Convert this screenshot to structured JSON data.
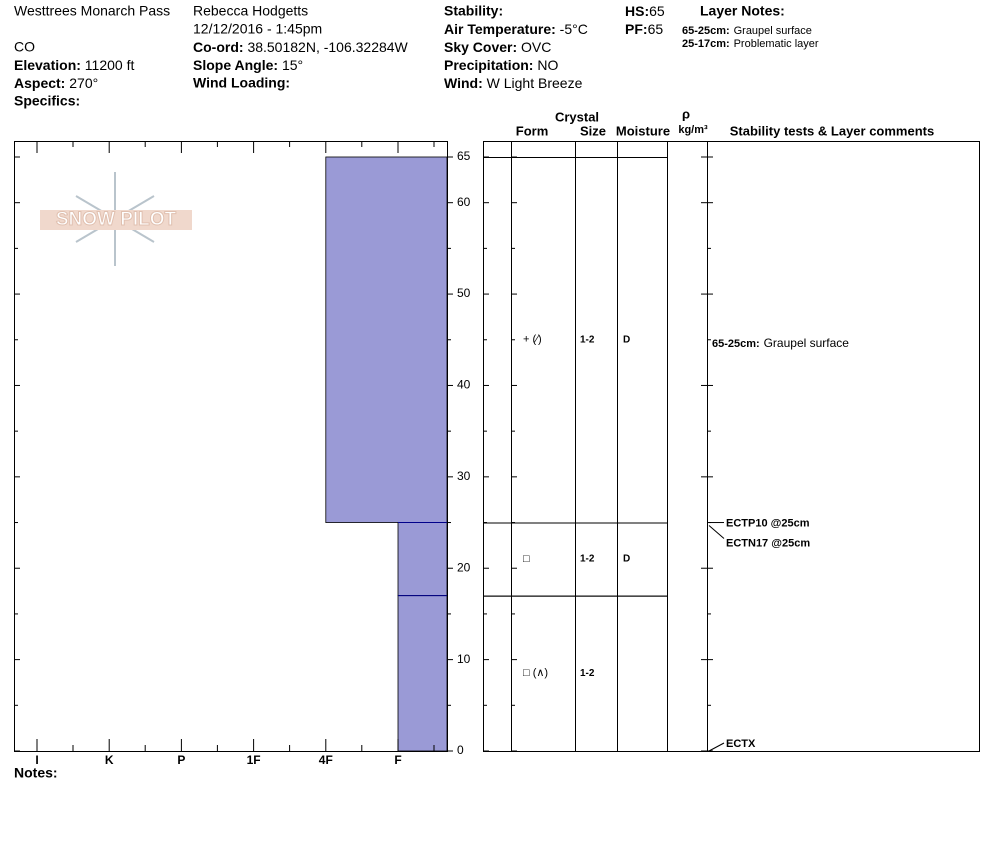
{
  "header": {
    "location": "Westtrees Monarch Pass",
    "state": "CO",
    "elevation_label": "Elevation:",
    "elevation": "11200 ft",
    "aspect_label": "Aspect:",
    "aspect": "270°",
    "specifics_label": "Specifics:",
    "observer": "Rebecca Hodgetts",
    "datetime": "12/12/2016 - 1:45pm",
    "coord_label": "Co-ord:",
    "coord": "38.50182N, -106.32284W",
    "slope_label": "Slope Angle:",
    "slope": "15°",
    "wind_loading_label": "Wind Loading:",
    "stability_label": "Stability:",
    "air_temp_label": "Air Temperature:",
    "air_temp": "-5°C",
    "sky_label": "Sky Cover:",
    "sky": "OVC",
    "precip_label": "Precipitation:",
    "precip": "NO",
    "wind_label": "Wind:",
    "wind": "W Light Breeze",
    "hs_label": "HS:",
    "hs": "65",
    "pf_label": "PF:",
    "pf": "65",
    "layer_notes_title": "Layer Notes:",
    "layer_notes": [
      {
        "label": "65-25cm:",
        "text": "Graupel surface"
      },
      {
        "label": "25-17cm:",
        "text": "Problematic layer"
      }
    ],
    "logo": "SNOW PILOT"
  },
  "chart_data": {
    "type": "profile",
    "ylim": [
      0,
      66.75
    ],
    "yticks": [
      0,
      10,
      20,
      30,
      40,
      50,
      60,
      65
    ],
    "minor_yticks": [
      5,
      15,
      25,
      35,
      45,
      55
    ],
    "categories": [
      "I",
      "K",
      "P",
      "1F",
      "4F",
      "F"
    ],
    "color": "#9a9ad6",
    "columns": {
      "crystal": "Crystal",
      "form": "Form",
      "size": "Size",
      "moisture": "Moisture",
      "rho": "ρ",
      "density": "kg/m³",
      "comments": "Stability tests & Layer comments"
    },
    "layers": [
      {
        "top": 65,
        "bottom": 25,
        "hardness": "4F",
        "form": "+ (⁄)",
        "size": "1-2",
        "moisture": "D",
        "comment_label": "65-25cm:",
        "comment": "Graupel surface"
      },
      {
        "top": 25,
        "bottom": 17,
        "hardness": "F",
        "form": "□",
        "size": "1-2",
        "moisture": "D"
      },
      {
        "top": 17,
        "bottom": 0,
        "hardness": "F",
        "form": "□ (∧)",
        "size": "1-2"
      }
    ],
    "tests": [
      {
        "height": 25,
        "label": "ECTP10 @25cm"
      },
      {
        "height": 25,
        "label": "ECTN17 @25cm"
      },
      {
        "height": 0,
        "label": "ECTX"
      }
    ]
  },
  "notes_label": "Notes:"
}
